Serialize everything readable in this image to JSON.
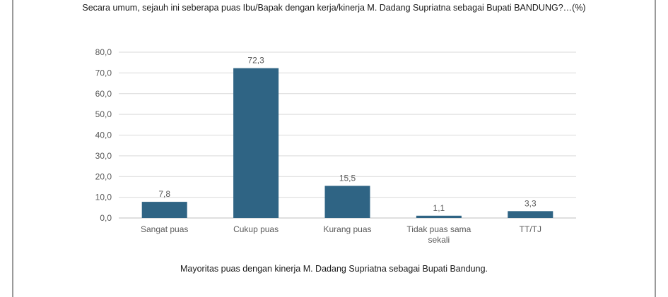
{
  "question": "Secara umum, sejauh ini seberapa puas Ibu/Bapak dengan kerja/kinerja M. Dadang Supriatna sebagai Bupati BANDUNG?…(%)",
  "caption": "Mayoritas puas dengan kinerja M. Dadang Supriatna sebagai Bupati Bandung.",
  "chart_data": {
    "type": "bar",
    "title": "",
    "xlabel": "",
    "ylabel": "",
    "categories": [
      "Sangat puas",
      "Cukup puas",
      "Kurang puas",
      "Tidak puas sama sekali",
      "TT/TJ"
    ],
    "category_label_lines": [
      [
        "Sangat puas"
      ],
      [
        "Cukup puas"
      ],
      [
        "Kurang puas"
      ],
      [
        "Tidak puas sama",
        "sekali"
      ],
      [
        "TT/TJ"
      ]
    ],
    "values": [
      7.8,
      72.3,
      15.5,
      1.1,
      3.3
    ],
    "value_labels": [
      "7,8",
      "72,3",
      "15,5",
      "1,1",
      "3,3"
    ],
    "ylim": [
      0,
      80
    ],
    "yticks": [
      0,
      10,
      20,
      30,
      40,
      50,
      60,
      70,
      80
    ],
    "ytick_labels": [
      "0,0",
      "10,0",
      "20,0",
      "30,0",
      "40,0",
      "50,0",
      "60,0",
      "70,0",
      "80,0"
    ],
    "grid": true,
    "legend": "none",
    "bar_color": "#2f6484",
    "grid_color": "#d9d9d9",
    "text_color": "#595959"
  }
}
